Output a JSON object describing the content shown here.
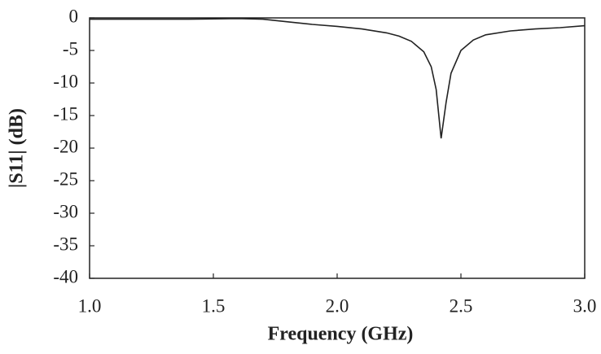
{
  "chart_data": {
    "type": "line",
    "xlabel": "Frequency (GHz)",
    "ylabel": "|S11| (dB)",
    "x": [
      1.0,
      1.2,
      1.4,
      1.6,
      1.7,
      1.8,
      1.9,
      2.0,
      2.1,
      2.2,
      2.25,
      2.3,
      2.35,
      2.38,
      2.4,
      2.42,
      2.44,
      2.46,
      2.5,
      2.55,
      2.6,
      2.7,
      2.8,
      2.9,
      3.0
    ],
    "values": [
      -0.2,
      -0.2,
      -0.2,
      -0.1,
      -0.2,
      -0.6,
      -1.0,
      -1.3,
      -1.7,
      -2.3,
      -2.8,
      -3.6,
      -5.2,
      -7.5,
      -11,
      -18.5,
      -13,
      -8.5,
      -5,
      -3.4,
      -2.6,
      -2.0,
      -1.7,
      -1.5,
      -1.2
    ],
    "color": "#222222",
    "xlim": [
      1.0,
      3.0
    ],
    "xticks": [
      {
        "value": 1.0,
        "label": "1.0"
      },
      {
        "value": 1.5,
        "label": "1.5"
      },
      {
        "value": 2.0,
        "label": "2.0"
      },
      {
        "value": 2.5,
        "label": "2.5"
      },
      {
        "value": 3.0,
        "label": "3.0"
      }
    ],
    "ylim": [
      -40,
      0
    ],
    "yticks": [
      0,
      -5,
      -10,
      -15,
      -20,
      -25,
      -30,
      -35,
      -40
    ]
  }
}
